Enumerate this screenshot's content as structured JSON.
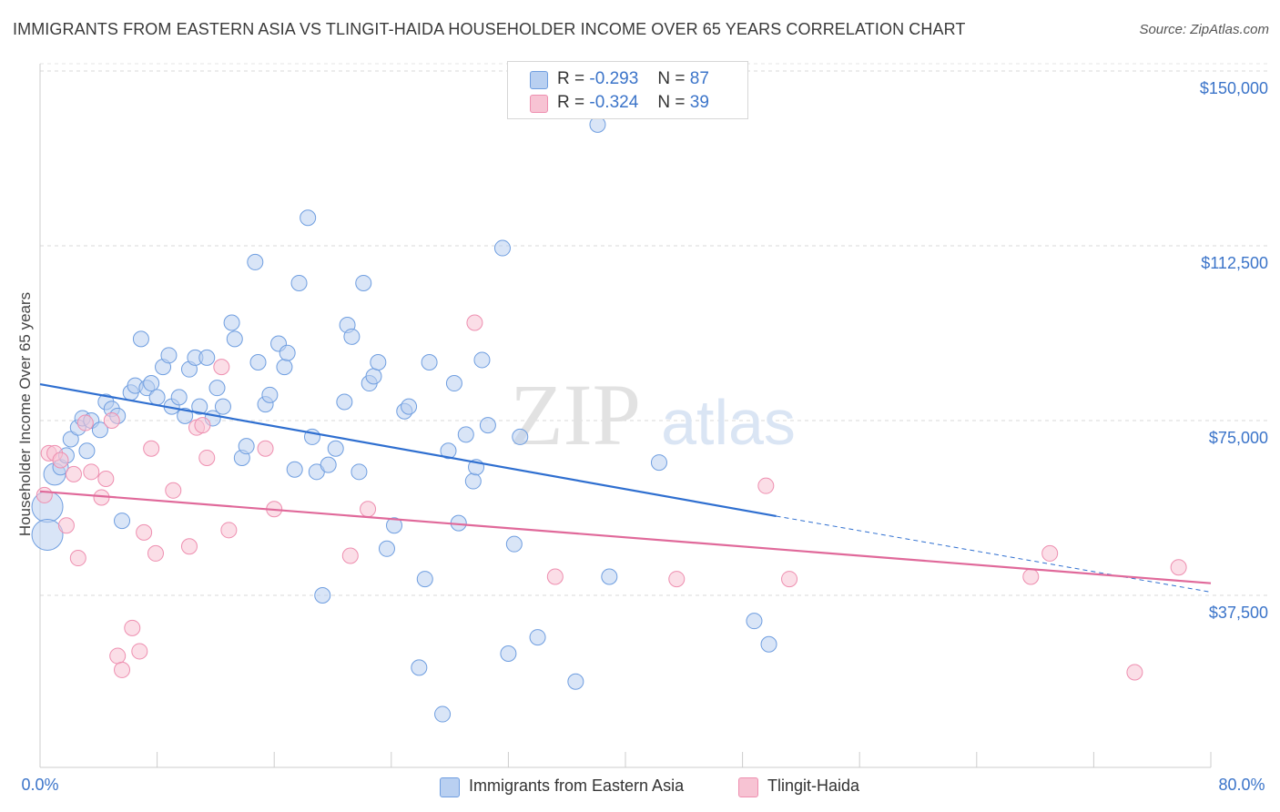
{
  "header": {
    "title": "IMMIGRANTS FROM EASTERN ASIA VS TLINGIT-HAIDA HOUSEHOLDER INCOME OVER 65 YEARS CORRELATION CHART",
    "source": "Source: ZipAtlas.com"
  },
  "watermark": {
    "zip": "ZIP",
    "atlas": "atlas"
  },
  "legend": {
    "r_label": "R =",
    "n_label": "N =",
    "series": [
      {
        "r": "-0.293",
        "n": "87",
        "color": "#b9d0f1"
      },
      {
        "r": "-0.324",
        "n": "39",
        "color": "#f7c3d3"
      }
    ]
  },
  "chart_data": {
    "type": "scatter",
    "title": "IMMIGRANTS FROM EASTERN ASIA VS TLINGIT-HAIDA HOUSEHOLDER INCOME OVER 65 YEARS CORRELATION CHART",
    "xlabel": "",
    "ylabel": "Householder Income Over 65 years",
    "xlim": [
      0,
      80
    ],
    "ylim": [
      0,
      155000
    ],
    "x_tick_labels": [
      "0.0%",
      "80.0%"
    ],
    "y_ticks": [
      37500,
      75000,
      112500,
      150000
    ],
    "y_tick_labels": [
      "$37,500",
      "$75,000",
      "$112,500",
      "$150,000"
    ],
    "grid": true,
    "legend_position": "bottom",
    "series": [
      {
        "name": "Immigrants from Eastern Asia",
        "color": "#6f9ee0",
        "fill": "#b9d0f1",
        "trend": {
          "x": [
            0,
            50.3
          ],
          "y": [
            82800,
            54500
          ],
          "extend_to": [
            80,
            38200
          ]
        },
        "points": [
          [
            0.5,
            56500,
            3
          ],
          [
            0.5,
            50500,
            3
          ],
          [
            1.0,
            63500,
            2
          ],
          [
            1.4,
            65000,
            1
          ],
          [
            1.8,
            67500,
            1
          ],
          [
            2.1,
            71000,
            1
          ],
          [
            2.6,
            73500,
            1
          ],
          [
            2.9,
            75500,
            1
          ],
          [
            3.2,
            68500,
            1
          ],
          [
            3.5,
            75000,
            1
          ],
          [
            4.1,
            73000,
            1
          ],
          [
            4.5,
            79000,
            1
          ],
          [
            4.9,
            77500,
            1
          ],
          [
            5.3,
            76000,
            1
          ],
          [
            5.6,
            53500,
            1
          ],
          [
            6.2,
            81000,
            1
          ],
          [
            6.5,
            82500,
            1
          ],
          [
            6.9,
            92500,
            1
          ],
          [
            7.3,
            82000,
            1
          ],
          [
            7.6,
            83000,
            1
          ],
          [
            8.0,
            80000,
            1
          ],
          [
            8.4,
            86500,
            1
          ],
          [
            8.8,
            89000,
            1
          ],
          [
            9.0,
            78000,
            1
          ],
          [
            9.5,
            80000,
            1
          ],
          [
            9.9,
            76000,
            1
          ],
          [
            10.2,
            86000,
            1
          ],
          [
            10.6,
            88500,
            1
          ],
          [
            10.9,
            78000,
            1
          ],
          [
            11.4,
            88500,
            1
          ],
          [
            11.8,
            75500,
            1
          ],
          [
            12.1,
            82000,
            1
          ],
          [
            12.5,
            78000,
            1
          ],
          [
            13.1,
            96000,
            1
          ],
          [
            13.3,
            92500,
            1
          ],
          [
            13.8,
            67000,
            1
          ],
          [
            14.1,
            69500,
            1
          ],
          [
            14.7,
            109000,
            1
          ],
          [
            14.9,
            87500,
            1
          ],
          [
            15.4,
            78500,
            1
          ],
          [
            15.7,
            80500,
            1
          ],
          [
            16.3,
            91500,
            1
          ],
          [
            16.7,
            86500,
            1
          ],
          [
            16.9,
            89500,
            1
          ],
          [
            17.4,
            64500,
            1
          ],
          [
            17.7,
            104500,
            1
          ],
          [
            18.3,
            118500,
            1
          ],
          [
            18.6,
            71500,
            1
          ],
          [
            18.9,
            64000,
            1
          ],
          [
            19.3,
            37500,
            1
          ],
          [
            19.7,
            65500,
            1
          ],
          [
            20.2,
            69000,
            1
          ],
          [
            20.8,
            79000,
            1
          ],
          [
            21.0,
            95500,
            1
          ],
          [
            21.3,
            93000,
            1
          ],
          [
            21.8,
            64000,
            1
          ],
          [
            22.1,
            104500,
            1
          ],
          [
            22.5,
            83000,
            1
          ],
          [
            22.8,
            84500,
            1
          ],
          [
            23.1,
            87500,
            1
          ],
          [
            23.7,
            47500,
            1
          ],
          [
            24.2,
            52500,
            1
          ],
          [
            24.9,
            77000,
            1
          ],
          [
            25.2,
            78000,
            1
          ],
          [
            25.9,
            22000,
            1
          ],
          [
            26.3,
            41000,
            1
          ],
          [
            26.6,
            87500,
            1
          ],
          [
            27.5,
            12000,
            1
          ],
          [
            27.9,
            68500,
            1
          ],
          [
            28.3,
            83000,
            1
          ],
          [
            28.6,
            53000,
            1
          ],
          [
            29.1,
            72000,
            1
          ],
          [
            29.6,
            62000,
            1
          ],
          [
            29.8,
            65000,
            1
          ],
          [
            30.2,
            88000,
            1
          ],
          [
            30.6,
            74000,
            1
          ],
          [
            31.6,
            112000,
            1
          ],
          [
            32.0,
            25000,
            1
          ],
          [
            32.4,
            48500,
            1
          ],
          [
            32.8,
            71500,
            1
          ],
          [
            34.0,
            28500,
            1
          ],
          [
            36.6,
            19000,
            1
          ],
          [
            38.1,
            138500,
            1
          ],
          [
            38.9,
            41500,
            1
          ],
          [
            42.3,
            66000,
            1
          ],
          [
            48.8,
            32000,
            1
          ],
          [
            49.8,
            27000,
            1
          ]
        ]
      },
      {
        "name": "Tlingit-Haida",
        "color": "#ee8fb0",
        "fill": "#f7c3d3",
        "trend": {
          "x": [
            0,
            80
          ],
          "y": [
            59800,
            40100
          ]
        },
        "points": [
          [
            0.3,
            59000,
            1
          ],
          [
            0.6,
            68000,
            1
          ],
          [
            1.0,
            68000,
            1
          ],
          [
            1.4,
            66500,
            1
          ],
          [
            1.8,
            52500,
            1
          ],
          [
            2.3,
            63500,
            1
          ],
          [
            2.6,
            45500,
            1
          ],
          [
            3.1,
            74500,
            1
          ],
          [
            3.5,
            64000,
            1
          ],
          [
            4.2,
            58500,
            1
          ],
          [
            4.5,
            62500,
            1
          ],
          [
            4.9,
            75000,
            1
          ],
          [
            5.3,
            24500,
            1
          ],
          [
            5.6,
            21500,
            1
          ],
          [
            6.3,
            30500,
            1
          ],
          [
            6.8,
            25500,
            1
          ],
          [
            7.1,
            51000,
            1
          ],
          [
            7.6,
            69000,
            1
          ],
          [
            7.9,
            46500,
            1
          ],
          [
            9.1,
            60000,
            1
          ],
          [
            10.2,
            48000,
            1
          ],
          [
            10.7,
            73500,
            1
          ],
          [
            11.1,
            74000,
            1
          ],
          [
            11.4,
            67000,
            1
          ],
          [
            12.4,
            86500,
            1
          ],
          [
            12.9,
            51500,
            1
          ],
          [
            15.4,
            69000,
            1
          ],
          [
            16.0,
            56000,
            1
          ],
          [
            21.2,
            46000,
            1
          ],
          [
            22.4,
            56000,
            1
          ],
          [
            29.7,
            96000,
            1
          ],
          [
            35.2,
            41500,
            1
          ],
          [
            43.5,
            41000,
            1
          ],
          [
            49.6,
            61000,
            1
          ],
          [
            51.2,
            41000,
            1
          ],
          [
            67.7,
            41500,
            1
          ],
          [
            69.0,
            46500,
            1
          ],
          [
            74.8,
            21000,
            1
          ],
          [
            77.8,
            43500,
            1
          ]
        ]
      }
    ]
  }
}
